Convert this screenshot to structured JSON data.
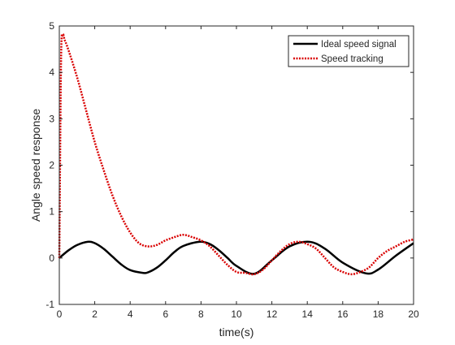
{
  "chart_data": {
    "type": "line",
    "title": "",
    "xlabel": "time(s)",
    "ylabel": "Angle speed response",
    "xlim": [
      0,
      20
    ],
    "ylim": [
      -1,
      5
    ],
    "xticks": [
      0,
      2,
      4,
      6,
      8,
      10,
      12,
      14,
      16,
      18,
      20
    ],
    "yticks": [
      -1,
      0,
      1,
      2,
      3,
      4,
      5
    ],
    "grid": false,
    "legend_position": "top-right",
    "series": [
      {
        "name": "Ideal speed signal",
        "color": "#000000",
        "style": "solid",
        "x": [
          0,
          0.5,
          1,
          1.6,
          2,
          2.5,
          3,
          3.5,
          4,
          4.7,
          5,
          5.5,
          6,
          6.5,
          7,
          7.9,
          8.5,
          9,
          9.5,
          10,
          11,
          12,
          13,
          14.1,
          15,
          16,
          17.3,
          18,
          19,
          20
        ],
        "y": [
          0,
          0.16,
          0.28,
          0.35,
          0.32,
          0.2,
          0.03,
          -0.14,
          -0.26,
          -0.32,
          -0.31,
          -0.21,
          -0.05,
          0.13,
          0.26,
          0.35,
          0.3,
          0.17,
          0.0,
          -0.17,
          -0.34,
          -0.05,
          0.25,
          0.35,
          0.2,
          -0.1,
          -0.33,
          -0.25,
          0.05,
          0.32
        ]
      },
      {
        "name": "Speed tracking",
        "color": "#d90000",
        "style": "dotted",
        "x": [
          0,
          0.1,
          0.2,
          0.3,
          0.5,
          1,
          1.5,
          2,
          2.5,
          3,
          3.5,
          4,
          4.5,
          5,
          5.5,
          6,
          6.5,
          7,
          7.5,
          8,
          8.5,
          9,
          9.5,
          10,
          10.5,
          11,
          11.5,
          12,
          12.5,
          13,
          13.5,
          14,
          14.5,
          15,
          15.5,
          16,
          16.5,
          17,
          17.5,
          18,
          18.5,
          19,
          19.5,
          20
        ],
        "y": [
          0,
          4.3,
          4.8,
          4.7,
          4.5,
          3.9,
          3.2,
          2.5,
          1.9,
          1.35,
          0.9,
          0.55,
          0.32,
          0.25,
          0.28,
          0.38,
          0.45,
          0.5,
          0.45,
          0.38,
          0.25,
          0.05,
          -0.15,
          -0.3,
          -0.32,
          -0.35,
          -0.25,
          -0.05,
          0.15,
          0.3,
          0.35,
          0.3,
          0.2,
          0.0,
          -0.2,
          -0.3,
          -0.35,
          -0.3,
          -0.2,
          0.0,
          0.15,
          0.25,
          0.35,
          0.4
        ]
      }
    ]
  }
}
